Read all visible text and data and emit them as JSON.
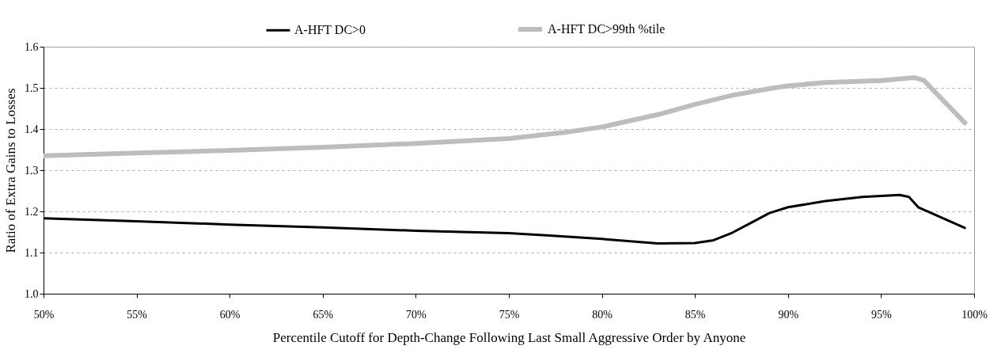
{
  "chart_data": {
    "type": "line",
    "xlabel": "Percentile Cutoff for Depth-Change Following Last Small Aggressive Order by Anyone",
    "ylabel": "Ratio of Extra Gains to Losses",
    "xlim": [
      50,
      100
    ],
    "xticks": [
      {
        "value": 50,
        "label": "50%"
      },
      {
        "value": 55,
        "label": "55%"
      },
      {
        "value": 60,
        "label": "60%"
      },
      {
        "value": 65,
        "label": "65%"
      },
      {
        "value": 70,
        "label": "70%"
      },
      {
        "value": 75,
        "label": "75%"
      },
      {
        "value": 80,
        "label": "80%"
      },
      {
        "value": 85,
        "label": "85%"
      },
      {
        "value": 90,
        "label": "90%"
      },
      {
        "value": 95,
        "label": "95%"
      },
      {
        "value": 100,
        "label": "100%"
      }
    ],
    "ylim": [
      1.0,
      1.6
    ],
    "yticks": [
      {
        "value": 1.0,
        "label": "1.0"
      },
      1.1,
      1.2,
      1.3,
      1.4,
      1.5,
      1.6
    ],
    "grid": "y",
    "legend": "top",
    "marker": "none",
    "line_style": "solid",
    "series": [
      {
        "name": "A-HFT DC>0",
        "color": "#000000",
        "x": [
          50,
          55,
          60,
          65,
          70,
          75,
          77,
          80,
          83,
          85,
          86,
          87,
          88,
          89,
          90,
          92,
          94,
          96,
          96.5,
          97,
          99.5
        ],
        "values": [
          1.183,
          1.176,
          1.168,
          1.161,
          1.153,
          1.147,
          1.142,
          1.133,
          1.122,
          1.123,
          1.13,
          1.148,
          1.172,
          1.196,
          1.21,
          1.225,
          1.235,
          1.24,
          1.235,
          1.21,
          1.16
        ]
      },
      {
        "name": "A-HFT DC>99th %tile",
        "color": "#bdbdbd",
        "x": [
          50,
          55,
          60,
          65,
          70,
          75,
          78,
          80,
          83,
          85,
          87,
          89,
          90,
          92,
          95,
          96.8,
          97.3,
          99.5
        ],
        "values": [
          1.335,
          1.342,
          1.348,
          1.356,
          1.365,
          1.377,
          1.392,
          1.405,
          1.435,
          1.46,
          1.482,
          1.498,
          1.505,
          1.513,
          1.518,
          1.525,
          1.518,
          1.415
        ]
      }
    ]
  }
}
